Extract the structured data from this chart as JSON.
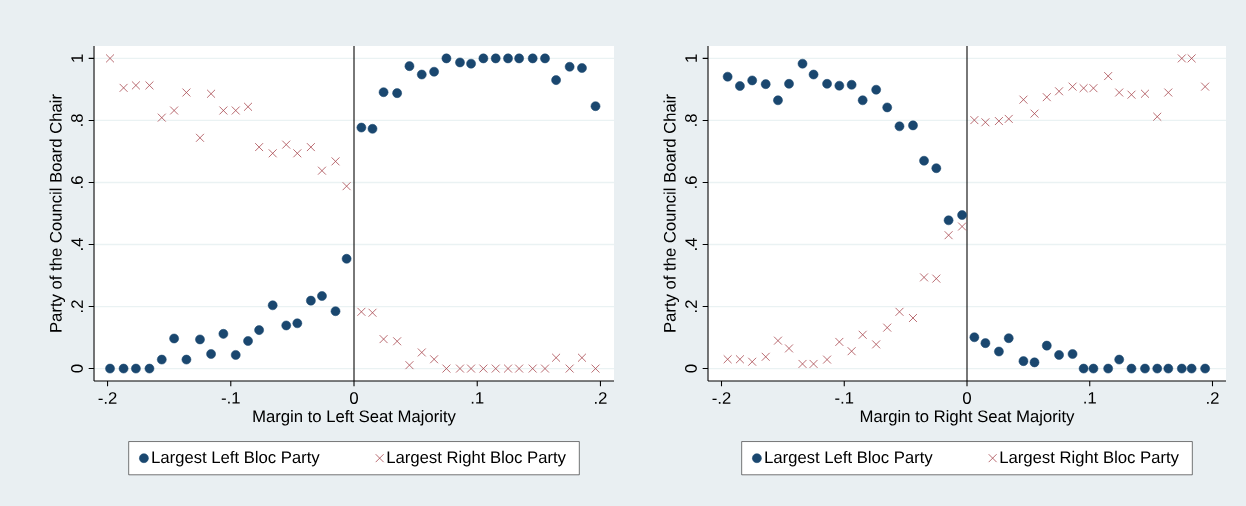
{
  "chart_data": [
    {
      "type": "scatter",
      "xlabel": "Margin to Left Seat Majority",
      "ylabel": "Party of the Council Board Chair",
      "x": [
        -0.198,
        -0.187,
        -0.177,
        -0.166,
        -0.156,
        -0.146,
        -0.136,
        -0.125,
        -0.116,
        -0.106,
        -0.096,
        -0.086,
        -0.077,
        -0.066,
        -0.055,
        -0.046,
        -0.035,
        -0.026,
        -0.015,
        -0.006,
        0.006,
        0.015,
        0.024,
        0.035,
        0.045,
        0.055,
        0.065,
        0.075,
        0.086,
        0.095,
        0.105,
        0.115,
        0.125,
        0.134,
        0.145,
        0.155,
        0.164,
        0.175,
        0.185,
        0.196
      ],
      "series": [
        {
          "name": "Largest Left Bloc Party",
          "color": "#1a476f",
          "marker": "circle",
          "values": [
            0,
            0,
            0,
            0,
            0.029,
            0.097,
            0.029,
            0.094,
            0.047,
            0.112,
            0.044,
            0.089,
            0.124,
            0.204,
            0.139,
            0.146,
            0.219,
            0.234,
            0.185,
            0.354,
            0.777,
            0.773,
            0.891,
            0.888,
            0.975,
            0.948,
            0.957,
            1,
            0.987,
            0.983,
            1,
            1,
            1,
            1,
            1,
            1,
            0.93,
            0.973,
            0.969,
            0.846
          ]
        },
        {
          "name": "Largest Right Bloc Party",
          "color": "#a8474f",
          "marker": "cross",
          "values": [
            1,
            0.905,
            0.913,
            0.913,
            0.809,
            0.832,
            0.89,
            0.744,
            0.886,
            0.832,
            0.832,
            0.844,
            0.714,
            0.694,
            0.722,
            0.694,
            0.714,
            0.638,
            0.668,
            0.588,
            0.183,
            0.18,
            0.095,
            0.088,
            0.011,
            0.052,
            0.03,
            0,
            0,
            0,
            0,
            0,
            0,
            0,
            0,
            0,
            0.035,
            0,
            0.035,
            0
          ]
        }
      ],
      "xlim": [
        -0.211,
        0.211
      ],
      "ylim": [
        -0.04,
        1.04
      ],
      "xticks": [
        {
          "value": -0.2,
          "label": "-.2"
        },
        {
          "value": -0.1,
          "label": "-.1"
        },
        0,
        {
          "value": 0.1,
          "label": ".1"
        },
        {
          "value": 0.2,
          "label": ".2"
        }
      ],
      "yticks": [
        0,
        {
          "value": 0.2,
          "label": ".2"
        },
        {
          "value": 0.4,
          "label": ".4"
        },
        {
          "value": 0.6,
          "label": ".6"
        },
        {
          "value": 0.8,
          "label": ".8"
        },
        1
      ],
      "grid": "y",
      "legend": "bottom",
      "ref_lines": [
        {
          "axis": "x",
          "value": 0,
          "color": "#000000"
        }
      ]
    },
    {
      "type": "scatter",
      "xlabel": "Margin to Right Seat Majority",
      "ylabel": "Party of the Council Board Chair",
      "x": [
        -0.195,
        -0.185,
        -0.175,
        -0.164,
        -0.154,
        -0.145,
        -0.134,
        -0.125,
        -0.114,
        -0.104,
        -0.094,
        -0.085,
        -0.074,
        -0.065,
        -0.055,
        -0.044,
        -0.035,
        -0.025,
        -0.015,
        -0.004,
        0.006,
        0.015,
        0.026,
        0.034,
        0.046,
        0.055,
        0.065,
        0.075,
        0.086,
        0.095,
        0.103,
        0.115,
        0.124,
        0.134,
        0.145,
        0.155,
        0.164,
        0.175,
        0.183,
        0.194
      ],
      "series": [
        {
          "name": "Largest Left Bloc Party",
          "color": "#1a476f",
          "marker": "circle",
          "values": [
            0.941,
            0.911,
            0.929,
            0.917,
            0.865,
            0.918,
            0.983,
            0.948,
            0.918,
            0.912,
            0.915,
            0.865,
            0.899,
            0.842,
            0.781,
            0.784,
            0.67,
            0.646,
            0.478,
            0.495,
            0.101,
            0.082,
            0.055,
            0.098,
            0.024,
            0.02,
            0.074,
            0.044,
            0.047,
            0,
            0,
            0,
            0.029,
            0,
            0,
            0,
            0,
            0,
            0,
            0
          ]
        },
        {
          "name": "Largest Right Bloc Party",
          "color": "#a8474f",
          "marker": "cross",
          "values": [
            0.03,
            0.03,
            0.022,
            0.038,
            0.09,
            0.065,
            0.015,
            0.015,
            0.029,
            0.086,
            0.056,
            0.109,
            0.078,
            0.132,
            0.183,
            0.163,
            0.294,
            0.29,
            0.43,
            0.458,
            0.801,
            0.794,
            0.798,
            0.805,
            0.867,
            0.822,
            0.875,
            0.894,
            0.909,
            0.904,
            0.904,
            0.943,
            0.89,
            0.883,
            0.886,
            0.812,
            0.89,
            1,
            1,
            0.909
          ]
        }
      ],
      "xlim": [
        -0.211,
        0.211
      ],
      "ylim": [
        -0.04,
        1.04
      ],
      "xticks": [
        {
          "value": -0.2,
          "label": "-.2"
        },
        {
          "value": -0.1,
          "label": "-.1"
        },
        0,
        {
          "value": 0.1,
          "label": ".1"
        },
        {
          "value": 0.2,
          "label": ".2"
        }
      ],
      "yticks": [
        0,
        {
          "value": 0.2,
          "label": ".2"
        },
        {
          "value": 0.4,
          "label": ".4"
        },
        {
          "value": 0.6,
          "label": ".6"
        },
        {
          "value": 0.8,
          "label": ".8"
        },
        1
      ],
      "grid": "y",
      "legend": "bottom",
      "ref_lines": [
        {
          "axis": "x",
          "value": 0,
          "color": "#000000"
        }
      ]
    }
  ]
}
